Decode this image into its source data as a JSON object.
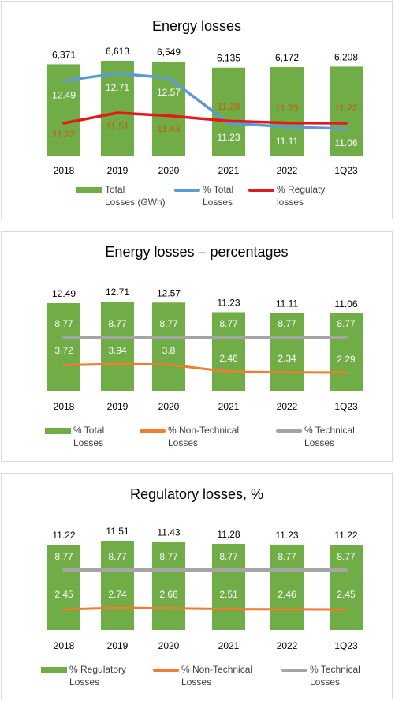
{
  "colors": {
    "bar": "#70ad47",
    "total_line": "#5b9bd5",
    "regulatory_line": "#e31a1c",
    "nontech_line": "#ed7d31",
    "tech_line": "#a5a5a5",
    "bar_label_dark": "#404040",
    "inbar_label": "#ffffff",
    "reg_label": "#c55a11"
  },
  "chart_data": [
    {
      "type": "bar",
      "title": "Energy losses",
      "categories": [
        "2018",
        "2019",
        "2020",
        "2021",
        "2022",
        "1Q23"
      ],
      "bar_series": {
        "name": "Total Losses (GWh)",
        "values": [
          6371,
          6613,
          6549,
          6135,
          6172,
          6208
        ],
        "labels": [
          "6,371",
          "6,613",
          "6,549",
          "6,135",
          "6,172",
          "6,208"
        ]
      },
      "line_series": [
        {
          "name": "% Total Losses",
          "values": [
            12.49,
            12.71,
            12.57,
            11.23,
            11.11,
            11.06
          ]
        },
        {
          "name": "% Regulaty losses",
          "values": [
            11.22,
            11.51,
            11.43,
            11.28,
            11.23,
            11.22
          ]
        }
      ],
      "legend": [
        {
          "type": "bar",
          "text": "Total Losses (GWh)",
          "lines": [
            "Total",
            "Losses (GWh)"
          ]
        },
        {
          "type": "line",
          "text": "% Total Losses",
          "lines": [
            "% Total",
            "Losses"
          ]
        },
        {
          "type": "line",
          "text": "% Regulaty losses",
          "lines": [
            "% Regulaty",
            "losses"
          ]
        }
      ],
      "legend_position": "bottom"
    },
    {
      "type": "bar",
      "title": "Energy losses – percentages",
      "categories": [
        "2018",
        "2019",
        "2020",
        "2021",
        "2022",
        "1Q23"
      ],
      "bar_series": {
        "name": "% Total Losses",
        "values": [
          12.49,
          12.71,
          12.57,
          11.23,
          11.11,
          11.06
        ]
      },
      "line_series": [
        {
          "name": "% Non-Technical Losses",
          "values": [
            3.72,
            3.94,
            3.8,
            2.46,
            2.34,
            2.29
          ]
        },
        {
          "name": "% Technical Losses",
          "values": [
            8.77,
            8.77,
            8.77,
            8.77,
            8.77,
            8.77
          ]
        }
      ],
      "legend": [
        {
          "type": "bar",
          "text": "% Total Losses",
          "lines": [
            "% Total",
            "Losses"
          ]
        },
        {
          "type": "line",
          "text": "% Non-Technical Losses",
          "lines": [
            "% Non-Technical",
            "Losses"
          ]
        },
        {
          "type": "line",
          "text": "% Technical Losses",
          "lines": [
            "% Technical",
            "Losses"
          ]
        }
      ],
      "legend_position": "bottom"
    },
    {
      "type": "bar",
      "title": "Regulatory losses, %",
      "categories": [
        "2018",
        "2019",
        "2020",
        "2021",
        "2022",
        "1Q23"
      ],
      "bar_series": {
        "name": "% Regulatory Losses",
        "values": [
          11.22,
          11.51,
          11.43,
          11.28,
          11.23,
          11.22
        ]
      },
      "line_series": [
        {
          "name": "% Non-Technical Losses",
          "values": [
            2.45,
            2.74,
            2.66,
            2.51,
            2.46,
            2.45
          ]
        },
        {
          "name": "% Technical Losses",
          "values": [
            8.77,
            8.77,
            8.77,
            8.77,
            8.77,
            8.77
          ]
        }
      ],
      "legend": [
        {
          "type": "bar",
          "text": "% Regulatory Losses",
          "lines": [
            "% Regulatory",
            "Losses"
          ]
        },
        {
          "type": "line",
          "text": "% Non-Technical Losses",
          "lines": [
            "% Non-Technical",
            "Losses"
          ]
        },
        {
          "type": "line",
          "text": "% Technical Losses",
          "lines": [
            "% Technical",
            "Losses"
          ]
        }
      ],
      "legend_position": "bottom"
    }
  ]
}
